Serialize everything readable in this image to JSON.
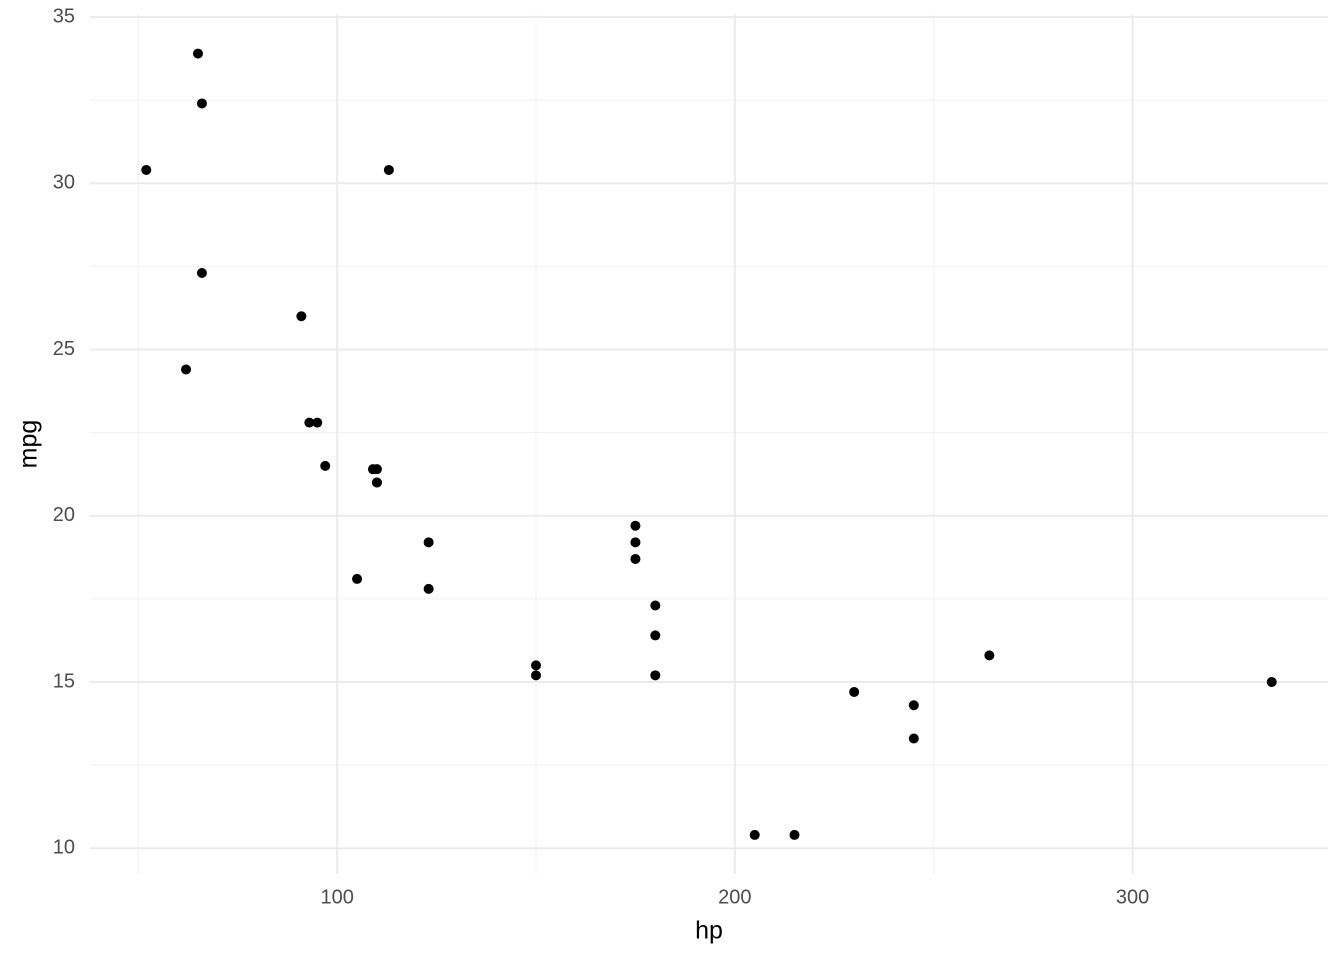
{
  "chart_data": {
    "type": "scatter",
    "x_label": "hp",
    "y_label": "mpg",
    "x": [
      110,
      110,
      93,
      110,
      175,
      105,
      245,
      62,
      95,
      123,
      123,
      180,
      180,
      180,
      205,
      215,
      230,
      66,
      52,
      65,
      97,
      150,
      150,
      245,
      175,
      66,
      91,
      113,
      264,
      175,
      335,
      109
    ],
    "values": [
      21.0,
      21.0,
      22.8,
      21.4,
      18.7,
      18.1,
      14.3,
      24.4,
      22.8,
      19.2,
      17.8,
      16.4,
      17.3,
      15.2,
      10.4,
      10.4,
      14.7,
      32.4,
      30.4,
      33.9,
      21.5,
      15.5,
      15.2,
      13.3,
      19.2,
      27.3,
      26.0,
      30.4,
      15.8,
      19.7,
      15.0,
      21.4
    ],
    "color": "#000000",
    "xlim": [
      37.85,
      349.15
    ],
    "ylim": [
      9.225,
      35.075
    ],
    "xticks": [
      100,
      200,
      300
    ],
    "yticks": [
      10,
      15,
      20,
      25,
      30,
      35
    ],
    "xminor": [
      50,
      150,
      250
    ],
    "yminor": [
      12.5,
      17.5,
      22.5,
      27.5,
      32.5
    ],
    "grid": true
  }
}
